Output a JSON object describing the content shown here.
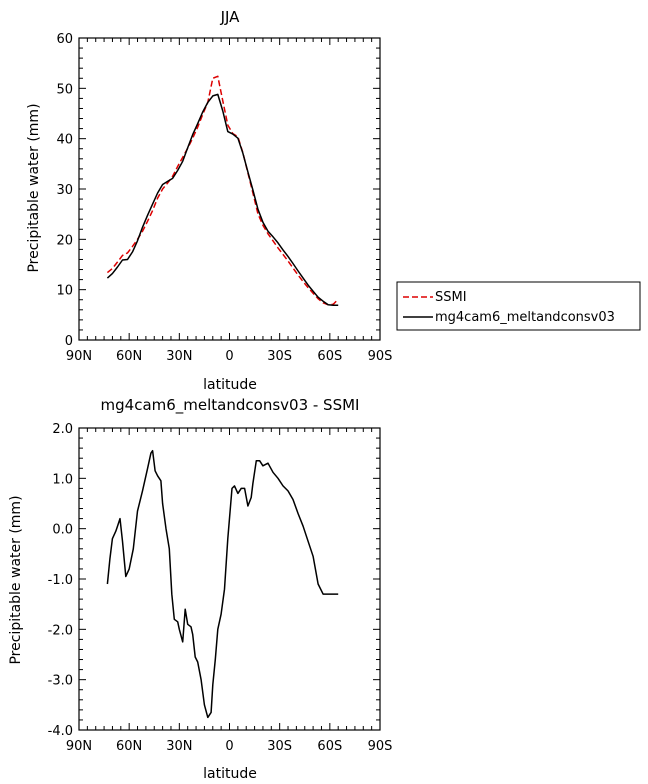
{
  "chart_data": [
    {
      "type": "line",
      "title": "JJA",
      "xlabel": "latitude",
      "ylabel": "Precipitable water (mm)",
      "xlim": [
        -90,
        90
      ],
      "ylim": [
        0,
        60
      ],
      "xticks": [
        -90,
        -60,
        -30,
        0,
        30,
        60,
        90
      ],
      "xtick_labels": [
        "90N",
        "60N",
        "30N",
        "0",
        "30S",
        "60S",
        "90S"
      ],
      "yticks": [
        0,
        10,
        20,
        30,
        40,
        50,
        60
      ],
      "ytick_labels": [
        "0",
        "10",
        "20",
        "30",
        "40",
        "50",
        "60"
      ],
      "grid": false,
      "legend": "right",
      "series": [
        {
          "name": "SSMI",
          "color": "#dd0000",
          "dash": true,
          "x": [
            -73,
            -70,
            -67,
            -64,
            -61,
            -58,
            -55,
            -52,
            -49,
            -46,
            -43,
            -40,
            -37,
            -34,
            -31,
            -28,
            -25,
            -22,
            -19,
            -16,
            -13,
            -10,
            -7,
            -4,
            -1,
            2,
            5,
            8,
            11,
            14,
            17,
            20,
            23,
            26,
            29,
            32,
            35,
            38,
            41,
            44,
            47,
            50,
            53,
            56,
            59,
            62,
            65
          ],
          "y": [
            13.4,
            14.2,
            15.5,
            16.8,
            17.3,
            18.6,
            20.0,
            21.6,
            23.6,
            25.7,
            28.2,
            30.0,
            31.2,
            32.5,
            34.5,
            36.3,
            38.1,
            40.1,
            42.3,
            44.8,
            47.2,
            52.0,
            52.4,
            47.5,
            42.7,
            41.0,
            40.4,
            37.2,
            33.2,
            29.2,
            25.1,
            22.8,
            21.1,
            19.7,
            18.3,
            17.0,
            15.7,
            14.3,
            12.9,
            11.6,
            10.4,
            9.3,
            8.2,
            7.4,
            7.0,
            7.1,
            8.1
          ]
        },
        {
          "name": "mg4cam6_meltandconsv03",
          "color": "#000000",
          "dash": false,
          "x": [
            -73,
            -70,
            -67,
            -64,
            -61,
            -58,
            -55,
            -52,
            -49,
            -46,
            -43,
            -40,
            -37,
            -34,
            -31,
            -28,
            -25,
            -22,
            -19,
            -16,
            -13,
            -10,
            -7,
            -4,
            -1,
            2,
            5,
            8,
            11,
            14,
            17,
            20,
            23,
            26,
            29,
            32,
            35,
            38,
            41,
            44,
            47,
            50,
            53,
            56,
            59,
            62,
            65
          ],
          "y": [
            12.3,
            13.2,
            14.5,
            15.9,
            16.0,
            17.5,
            19.7,
            22.4,
            24.8,
            27.0,
            29.2,
            30.9,
            31.5,
            32.1,
            33.7,
            35.5,
            38.2,
            40.8,
            43.0,
            45.3,
            47.2,
            48.5,
            48.8,
            45.5,
            41.4,
            40.9,
            40.1,
            37.1,
            33.4,
            29.8,
            26.0,
            23.4,
            21.6,
            20.5,
            19.3,
            17.9,
            16.6,
            15.2,
            13.7,
            12.3,
            10.9,
            9.7,
            8.5,
            7.7,
            7.0,
            6.9,
            6.9
          ]
        }
      ]
    },
    {
      "type": "line",
      "title": "mg4cam6_meltandconsv03 - SSMI",
      "xlabel": "latitude",
      "ylabel": "Precipitable water (mm)",
      "xlim": [
        -90,
        90
      ],
      "ylim": [
        -4,
        2
      ],
      "xticks": [
        -90,
        -60,
        -30,
        0,
        30,
        60,
        90
      ],
      "xtick_labels": [
        "90N",
        "60N",
        "30N",
        "0",
        "30S",
        "60S",
        "90S"
      ],
      "yticks": [
        -4,
        -3,
        -2,
        -1,
        0,
        1,
        2
      ],
      "ytick_labels": [
        "-4.0",
        "-3.0",
        "-2.0",
        "-1.0",
        "0.0",
        "1.0",
        "2.0"
      ],
      "grid": false,
      "series": [
        {
          "color": "#000000",
          "dash": false,
          "x": [
            -73,
            -71.5,
            -70,
            -68,
            -67,
            -65.5,
            -64,
            -62,
            -60,
            -57.5,
            -55,
            -52,
            -49,
            -47,
            -46,
            -44.5,
            -43,
            -41,
            -40,
            -38,
            -36,
            -34.5,
            -33,
            -31,
            -30,
            -28,
            -26.5,
            -25,
            -23,
            -22,
            -20.5,
            -19,
            -17,
            -15,
            -13,
            -11,
            -10,
            -8.5,
            -7,
            -5,
            -3,
            -1,
            1.5,
            3,
            5,
            7,
            9,
            11,
            13,
            14,
            16,
            18,
            20,
            23,
            26,
            29,
            32,
            35,
            38,
            41,
            44,
            47,
            50,
            53,
            56,
            58,
            59,
            62,
            65
          ],
          "y": [
            -1.1,
            -0.6,
            -0.2,
            -0.05,
            0.05,
            0.2,
            -0.25,
            -0.95,
            -0.8,
            -0.4,
            0.35,
            0.75,
            1.2,
            1.5,
            1.55,
            1.15,
            1.05,
            0.95,
            0.5,
            0.0,
            -0.4,
            -1.3,
            -1.8,
            -1.85,
            -2.0,
            -2.25,
            -1.6,
            -1.9,
            -1.95,
            -2.1,
            -2.55,
            -2.65,
            -3.0,
            -3.5,
            -3.75,
            -3.65,
            -3.1,
            -2.6,
            -2.0,
            -1.7,
            -1.2,
            -0.2,
            0.8,
            0.85,
            0.7,
            0.8,
            0.8,
            0.45,
            0.62,
            0.9,
            1.35,
            1.35,
            1.25,
            1.3,
            1.12,
            1.0,
            0.85,
            0.75,
            0.58,
            0.3,
            0.05,
            -0.25,
            -0.55,
            -1.1,
            -1.3,
            -1.3,
            -1.3,
            -1.3,
            -1.3
          ]
        }
      ]
    }
  ],
  "colors": {
    "axis": "#000000",
    "background": "#ffffff"
  }
}
